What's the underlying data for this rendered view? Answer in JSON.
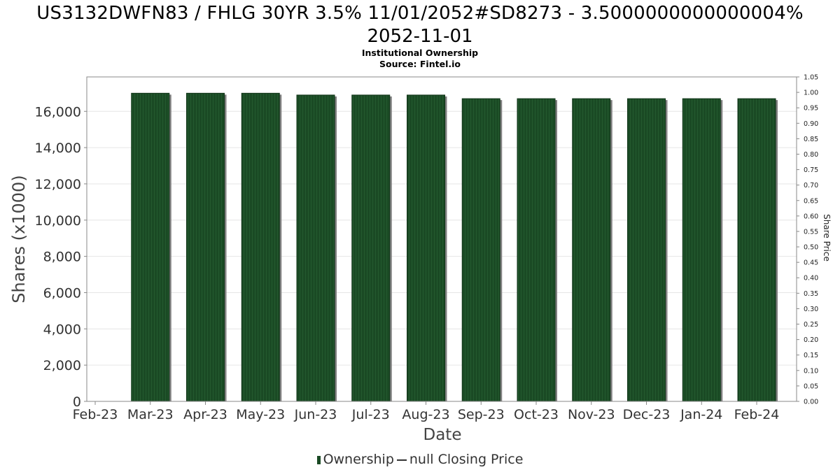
{
  "chart_data": {
    "type": "bar",
    "title_line1": "US3132DWFN83 / FHLG 30YR 3.5% 11/01/2052#SD8273 - 3.5000000000000004%",
    "title_line2": "2052-11-01",
    "subtitle": "Institutional Ownership",
    "source": "Source: Fintel.io",
    "xlabel": "Date",
    "ylabel": "Shares (x1000)",
    "y2label": "Share Price",
    "x_ticks": [
      "Feb-23",
      "Mar-23",
      "Apr-23",
      "May-23",
      "Jun-23",
      "Jul-23",
      "Aug-23",
      "Sep-23",
      "Oct-23",
      "Nov-23",
      "Dec-23",
      "Jan-24",
      "Feb-24"
    ],
    "categories": [
      "Mar-23",
      "Apr-23",
      "May-23",
      "Jun-23",
      "Jul-23",
      "Aug-23",
      "Sep-23",
      "Oct-23",
      "Nov-23",
      "Dec-23",
      "Jan-24",
      "Feb-24"
    ],
    "series": [
      {
        "name": "Ownership",
        "values": [
          17000,
          17000,
          17000,
          16900,
          16900,
          16900,
          16700,
          16700,
          16700,
          16700,
          16700,
          16700
        ]
      }
    ],
    "ylim": [
      0,
      17900
    ],
    "y_ticks": [
      "0",
      "2,000",
      "4,000",
      "6,000",
      "8,000",
      "10,000",
      "12,000",
      "14,000",
      "16,000"
    ],
    "y_tick_values": [
      0,
      2000,
      4000,
      6000,
      8000,
      10000,
      12000,
      14000,
      16000
    ],
    "y2lim": [
      0,
      1.05
    ],
    "y2_ticks": [
      "0.00",
      "0.05",
      "0.10",
      "0.15",
      "0.20",
      "0.25",
      "0.30",
      "0.35",
      "0.40",
      "0.45",
      "0.50",
      "0.55",
      "0.60",
      "0.65",
      "0.70",
      "0.75",
      "0.80",
      "0.85",
      "0.90",
      "0.95",
      "1.00",
      "1.05"
    ],
    "legend": [
      {
        "label": "Ownership",
        "kind": "bar-swatch"
      },
      {
        "label": "null Closing Price",
        "kind": "line"
      }
    ],
    "legend_position": "bottom",
    "grid": true,
    "colors": {
      "bar": "#1a4a24",
      "bar_shadow": "#808080",
      "grid": "#e6e6e6",
      "axis": "#888888"
    }
  }
}
